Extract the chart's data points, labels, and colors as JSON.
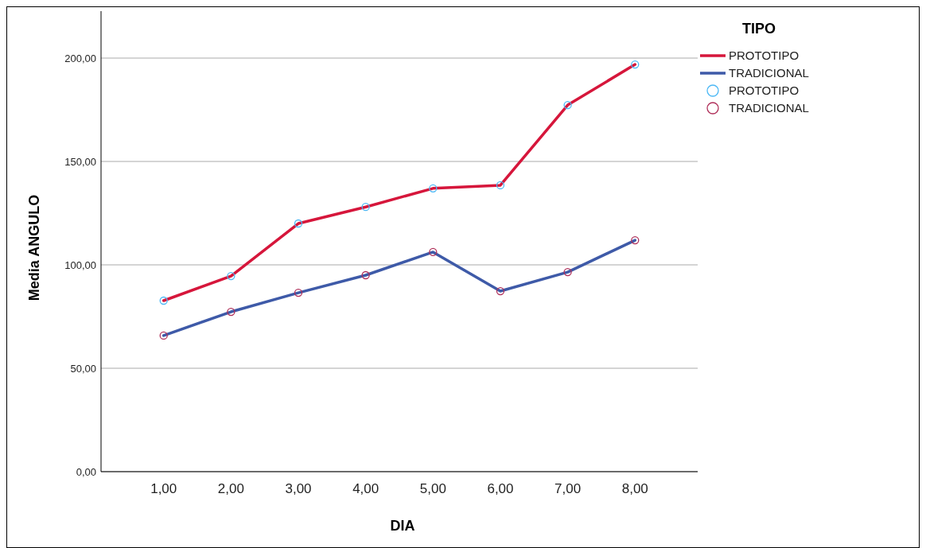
{
  "chart_data": {
    "type": "line",
    "xlabel": "DIA",
    "ylabel": "Media ANGULO",
    "legend_title": "TIPO",
    "legend": "right",
    "grid": "y",
    "categories": [
      "1,00",
      "2,00",
      "3,00",
      "4,00",
      "5,00",
      "6,00",
      "7,00",
      "8,00"
    ],
    "ylim": [
      0,
      222.7
    ],
    "yticks": [
      {
        "value": 0,
        "label": "0,00"
      },
      {
        "value": 50,
        "label": "50,00"
      },
      {
        "value": 100,
        "label": "100,00"
      },
      {
        "value": 150,
        "label": "150,00"
      },
      {
        "value": 200,
        "label": "200,00"
      }
    ],
    "series": [
      {
        "name": "PROTOTIPO",
        "color": "#d6163b",
        "values": [
          82.7,
          94.6,
          120,
          128,
          137,
          138.5,
          177.3,
          196.9
        ]
      },
      {
        "name": "TRADICIONAL",
        "color": "#3e5aa8",
        "values": [
          65.8,
          77.3,
          86.5,
          95,
          106.2,
          87.3,
          96.5,
          111.9
        ]
      },
      {
        "type": "scatter",
        "marker": "circle",
        "name": "PROTOTIPO",
        "color": "#4cb8f5",
        "values": [
          82.7,
          94.6,
          120,
          128,
          137,
          138.5,
          177.3,
          196.9
        ]
      },
      {
        "type": "scatter",
        "marker": "circle",
        "name": "TRADICIONAL",
        "color": "#b0305a",
        "values": [
          65.8,
          77.3,
          86.5,
          95,
          106.2,
          87.3,
          96.5,
          111.9
        ]
      }
    ]
  }
}
